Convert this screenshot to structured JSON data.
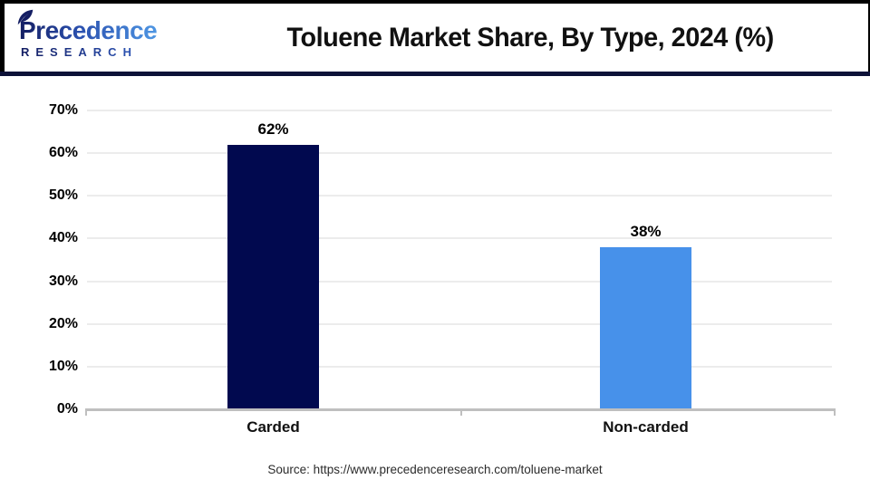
{
  "header": {
    "logo_line1": "Precedence",
    "logo_line2": "RESEARCH",
    "title": "Toluene Market Share, By Type, 2024 (%)"
  },
  "chart_data": {
    "type": "bar",
    "title": "Toluene Market Share, By Type, 2024 (%)",
    "categories": [
      "Carded",
      "Non-carded"
    ],
    "values": [
      62,
      38
    ],
    "value_labels": [
      "62%",
      "38%"
    ],
    "xlabel": "",
    "ylabel": "",
    "ylim": [
      0,
      70
    ],
    "ytick_step": 10,
    "ytick_labels": [
      "0%",
      "10%",
      "20%",
      "30%",
      "40%",
      "50%",
      "60%",
      "70%"
    ],
    "grid": true,
    "legend": "none",
    "bar_colors": [
      "#01094F",
      "#4791EA"
    ]
  },
  "footer": {
    "source": "Source: https://www.precedenceresearch.com/toluene-market"
  },
  "colors": {
    "divider": "#0D1238",
    "gridline": "#ECECEC",
    "axis": "#BFBFBF",
    "logo_blue_dark": "#141E63",
    "logo_blue_light": "#4E96E3"
  }
}
